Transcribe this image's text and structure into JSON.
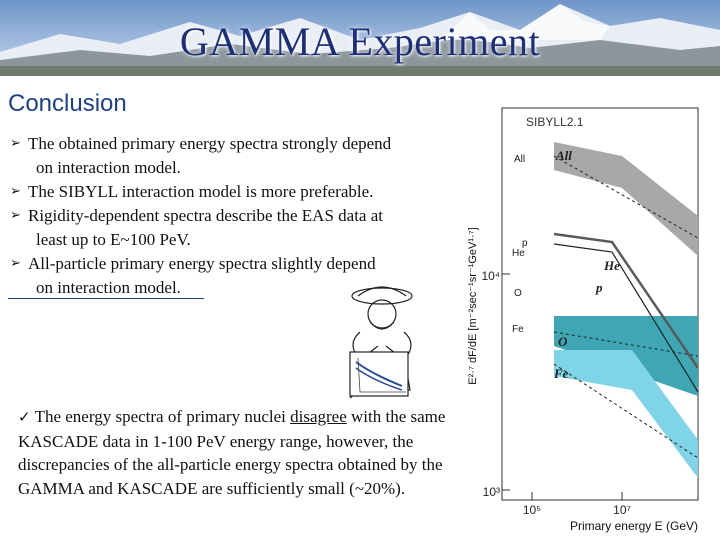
{
  "header": {
    "title": "GAMMA Experiment"
  },
  "section": {
    "title": "Conclusion"
  },
  "bullets": [
    {
      "line1": "The obtained primary energy spectra strongly depend",
      "line2": "on interaction model."
    },
    {
      "line1": "The SIBYLL interaction model is more preferable."
    },
    {
      "line1": "Rigidity-dependent spectra describe the EAS data at",
      "line2": "least up to E~100 PeV."
    },
    {
      "line1": "All-particle primary energy spectra slightly depend",
      "line2": "on interaction model."
    }
  ],
  "note": {
    "before": "The energy spectra of primary nuclei ",
    "underlined": "disagree",
    "after": " with the same KASCADE data in 1-100 PeV energy range, however, the discrepancies of the all-particle energy spectra obtained by the GAMMA and KASCADE are sufficiently small (~20%)."
  },
  "plot": {
    "model_label": "SIBYLL2.1",
    "y_axis_label": "E²·⁷ dF/dE  [m⁻²sec⁻¹sr⁻¹GeV¹·⁷]",
    "x_axis_label": "Primary energy E (GeV)",
    "y_ticks": [
      "10⁴",
      "10³"
    ],
    "x_ticks": [
      "10⁵",
      "10⁷"
    ],
    "curve_labels": {
      "all": "All",
      "he": "He",
      "p": "p",
      "o": "O",
      "fe": "Fe"
    },
    "marker_labels": {
      "all": "All",
      "p": "p",
      "he": "He",
      "o": "O",
      "fe": "Fe"
    },
    "colors": {
      "all_band": "#a8a8a8",
      "o_band": "#3fa7b4",
      "fe_band": "#7fd4e8",
      "he_line": "#5a5a5a"
    }
  }
}
